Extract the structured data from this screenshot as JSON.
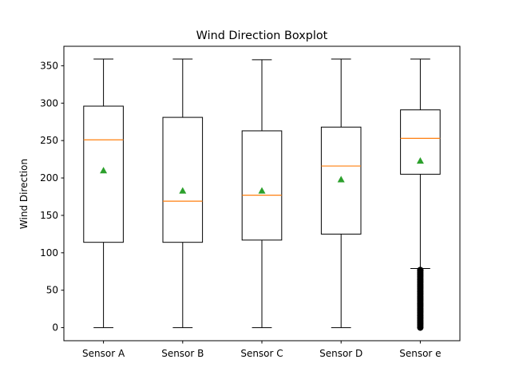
{
  "chart_data": {
    "type": "boxplot",
    "title": "Wind Direction Boxplot",
    "xlabel": "",
    "ylabel": "Wind Direction",
    "ylim": [
      -17.5,
      376
    ],
    "yticks": [
      0,
      50,
      100,
      150,
      200,
      250,
      300,
      350
    ],
    "grid": false,
    "categories": [
      "Sensor A",
      "Sensor B",
      "Sensor C",
      "Sensor D",
      "Sensor e"
    ],
    "boxes": [
      {
        "whisker_low": 0,
        "q1": 114,
        "median": 251,
        "q3": 296,
        "whisker_high": 359,
        "mean": 210
      },
      {
        "whisker_low": 0,
        "q1": 114,
        "median": 169,
        "q3": 281,
        "whisker_high": 359,
        "mean": 183
      },
      {
        "whisker_low": 0,
        "q1": 117,
        "median": 177,
        "q3": 263,
        "whisker_high": 358,
        "mean": 183
      },
      {
        "whisker_low": 0,
        "q1": 125,
        "median": 216,
        "q3": 268,
        "whisker_high": 359,
        "mean": 198
      },
      {
        "whisker_low": 79,
        "q1": 205,
        "median": 253,
        "q3": 291,
        "whisker_high": 359,
        "mean": 223,
        "outliers": [
          0,
          2,
          4,
          6,
          8,
          10,
          12,
          14,
          16,
          18,
          20,
          22,
          24,
          26,
          28,
          30,
          32,
          34,
          36,
          38,
          40,
          42,
          44,
          46,
          48,
          50,
          52,
          54,
          56,
          58,
          60,
          62,
          64,
          66,
          68,
          70,
          72,
          74,
          76,
          77
        ]
      }
    ],
    "colors": {
      "box": "#000000",
      "median": "#ff7f0e",
      "mean": "#2ca02c",
      "outlier": "#000000"
    }
  }
}
